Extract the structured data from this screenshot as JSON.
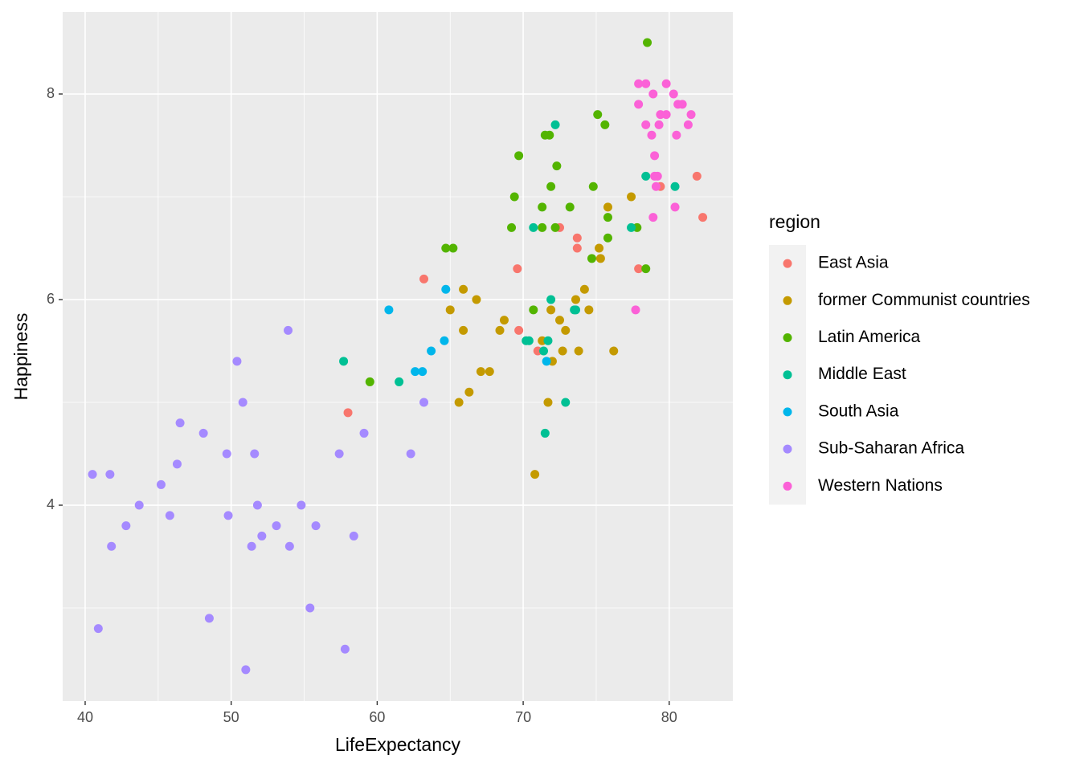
{
  "chart_data": {
    "type": "scatter",
    "x_label": "LifeExpectancy",
    "y_label": "Happiness",
    "legend_title": "region",
    "xlim": [
      38.46,
      84.36
    ],
    "ylim": [
      2.094,
      8.797
    ],
    "xticks": [
      40,
      50,
      60,
      70,
      80
    ],
    "yticks": [
      4,
      6,
      8
    ],
    "grid": true,
    "legend": "right",
    "series": [
      {
        "name": "East Asia",
        "color": "#F8766D",
        "x": [
          63.2,
          58.0,
          69.6,
          69.7,
          71.0,
          72.5,
          73.7,
          73.7,
          77.9,
          79.4,
          81.9,
          82.3
        ],
        "values": [
          6.2,
          4.9,
          6.3,
          5.7,
          5.5,
          6.7,
          6.6,
          6.5,
          6.3,
          7.1,
          7.2,
          6.8
        ]
      },
      {
        "name": "former Communist countries",
        "color": "#C49A00",
        "x": [
          65.0,
          65.9,
          65.9,
          65.6,
          66.3,
          66.8,
          67.1,
          67.7,
          68.4,
          68.7,
          70.8,
          71.3,
          71.7,
          71.9,
          72.0,
          72.5,
          72.7,
          72.9,
          73.6,
          73.8,
          74.2,
          74.5,
          75.2,
          75.3,
          75.8,
          76.2,
          77.4
        ],
        "values": [
          5.9,
          6.1,
          5.7,
          5.0,
          5.1,
          6.0,
          5.3,
          5.3,
          5.7,
          5.8,
          4.3,
          5.6,
          5.0,
          5.9,
          5.4,
          5.8,
          5.5,
          5.7,
          6.0,
          5.5,
          6.1,
          5.9,
          6.5,
          6.4,
          6.9,
          5.5,
          7.0
        ]
      },
      {
        "name": "Latin America",
        "color": "#53B400",
        "x": [
          59.5,
          64.7,
          65.2,
          69.2,
          69.4,
          69.7,
          70.7,
          71.3,
          71.3,
          71.5,
          71.8,
          71.9,
          72.2,
          72.3,
          73.2,
          74.7,
          74.8,
          75.1,
          75.6,
          75.8,
          75.8,
          77.8,
          78.4,
          78.5
        ],
        "values": [
          5.2,
          6.5,
          6.5,
          6.7,
          7.0,
          7.4,
          5.9,
          6.9,
          6.7,
          7.6,
          7.6,
          7.1,
          6.7,
          7.3,
          6.9,
          6.4,
          7.1,
          7.8,
          7.7,
          6.8,
          6.6,
          6.7,
          6.3,
          8.5
        ]
      },
      {
        "name": "Middle East",
        "color": "#00C094",
        "x": [
          57.7,
          61.5,
          70.2,
          70.4,
          70.7,
          71.4,
          71.5,
          71.7,
          71.9,
          72.2,
          72.9,
          73.5,
          73.6,
          77.4,
          78.4,
          80.4
        ],
        "values": [
          5.4,
          5.2,
          5.6,
          5.6,
          6.7,
          5.5,
          4.7,
          5.6,
          6.0,
          7.7,
          5.0,
          5.9,
          5.9,
          6.7,
          7.2,
          7.1
        ]
      },
      {
        "name": "South Asia",
        "color": "#00B6EB",
        "x": [
          60.8,
          62.6,
          63.1,
          63.7,
          64.6,
          64.7,
          71.6
        ],
        "values": [
          5.9,
          5.3,
          5.3,
          5.5,
          5.6,
          6.1,
          5.4
        ]
      },
      {
        "name": "Sub-Saharan Africa",
        "color": "#A58AFF",
        "x": [
          40.5,
          40.9,
          41.7,
          41.8,
          42.8,
          43.7,
          45.2,
          45.8,
          46.3,
          46.5,
          48.1,
          48.5,
          49.7,
          49.8,
          50.4,
          50.8,
          51.0,
          51.4,
          51.6,
          51.8,
          52.1,
          53.1,
          53.9,
          54.0,
          54.8,
          55.4,
          55.8,
          57.4,
          57.8,
          58.4,
          59.1,
          62.3,
          63.2
        ],
        "values": [
          4.3,
          2.8,
          4.3,
          3.6,
          3.8,
          4.0,
          4.2,
          3.9,
          4.4,
          4.8,
          4.7,
          2.9,
          4.5,
          3.9,
          5.4,
          5.0,
          2.4,
          3.6,
          4.5,
          4.0,
          3.7,
          3.8,
          5.7,
          3.6,
          4.0,
          3.0,
          3.8,
          4.5,
          2.6,
          3.7,
          4.7,
          4.5,
          5.0
        ]
      },
      {
        "name": "Western Nations",
        "color": "#FB61D7",
        "x": [
          77.7,
          77.9,
          77.9,
          78.4,
          78.4,
          78.8,
          78.9,
          78.9,
          79.0,
          79.0,
          79.2,
          79.1,
          79.3,
          79.4,
          79.8,
          79.8,
          80.3,
          80.4,
          80.5,
          80.6,
          80.9,
          81.3,
          81.5
        ],
        "values": [
          5.9,
          8.1,
          7.9,
          8.1,
          7.7,
          7.6,
          8.0,
          6.8,
          7.4,
          7.2,
          7.2,
          7.1,
          7.7,
          7.8,
          8.1,
          7.8,
          8.0,
          6.9,
          7.6,
          7.9,
          7.9,
          7.7,
          7.8
        ]
      }
    ]
  }
}
